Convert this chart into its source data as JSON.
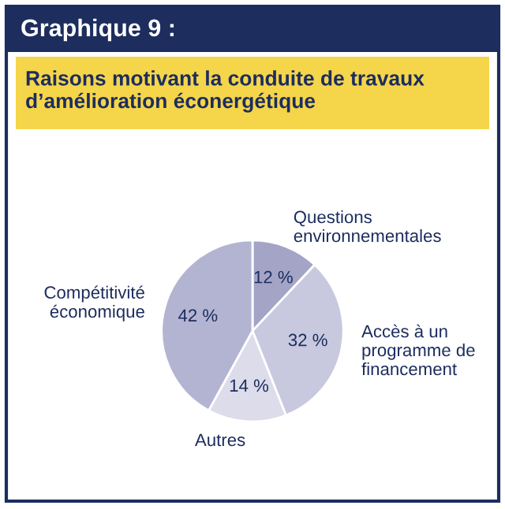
{
  "chart_data": {
    "type": "pie",
    "title": "Graphique 9 :",
    "subtitle": "Raisons motivant la conduite de travaux d’amélioration éconergétique",
    "categories": [
      "Questions\nenvironnementales",
      "Accès à un\nprogramme de\nfinancement",
      "Autres",
      "Compétitivité\néconomique"
    ],
    "values": [
      12,
      32,
      14,
      42
    ],
    "value_labels": [
      "12 %",
      "32 %",
      "14 %",
      "42 %"
    ],
    "colors": [
      "#a3a4c6",
      "#c8c9de",
      "#dcdcea",
      "#b3b4d1"
    ]
  }
}
